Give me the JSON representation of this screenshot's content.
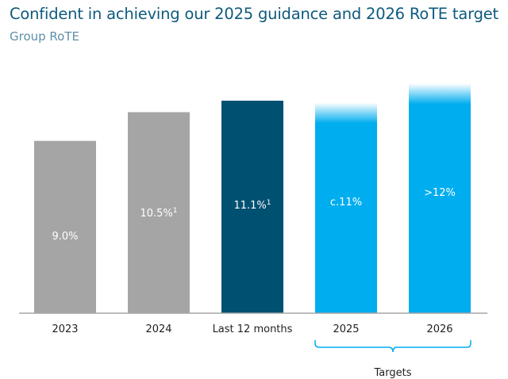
{
  "header": {
    "title": "Confident in achieving our 2025 guidance and 2026 RoTE target",
    "subtitle": "Group RoTE"
  },
  "chart_data": {
    "type": "bar",
    "title": "Confident in achieving our 2025 guidance and 2026 RoTE target",
    "subtitle": "Group RoTE",
    "categories": [
      "2023",
      "2024",
      "Last 12 months",
      "2025",
      "2026"
    ],
    "values": [
      9.0,
      10.5,
      11.1,
      11.0,
      12.0
    ],
    "data_labels": [
      "9.0%",
      "10.5%",
      "11.1%",
      "c.11%",
      ">12%"
    ],
    "label_superscripts": [
      "",
      "1",
      "1",
      "",
      ""
    ],
    "bar_colors": [
      "#a5a5a5",
      "#a5a5a5",
      "#005072",
      "#00adef",
      "#00adef"
    ],
    "faded_top": [
      false,
      false,
      false,
      true,
      true
    ],
    "bracket": {
      "label": "Targets",
      "covers": [
        "2025",
        "2026"
      ]
    },
    "ylim": [
      0,
      12.3
    ],
    "grid": false,
    "legend": "none",
    "axis_color": "#a5a5a5"
  }
}
